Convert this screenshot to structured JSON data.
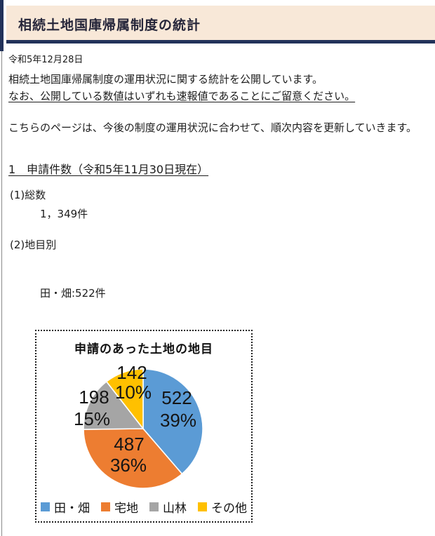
{
  "page": {
    "title": "相続土地国庫帰属制度の統計",
    "date": "令和5年12月28日",
    "intro_line1": "相続土地国庫帰属制度の運用状況に関する統計を公開しています。",
    "intro_line2_underlined": "なお、公開している数値はいずれも速報値であることにご留意ください。",
    "update_note": "こちらのページは、今後の制度の運用状況に合わせて、順次内容を更新していきます。",
    "section1_heading": "1　申請件数（令和5年11月30日現在）",
    "subsection1_label": "(1)総数",
    "subsection1_value": "1，349件",
    "subsection2_label": "(2)地目別",
    "subsection2_items": [
      "田・畑:522件",
      "宅地　:487件",
      "山林　:198件",
      "その他:142件"
    ]
  },
  "theme": {
    "header_bg": "#f8e8d8",
    "header_accent": "#22325a",
    "left_rule": "#8a8a8a"
  },
  "chart_data": {
    "type": "pie",
    "title": "申請のあった土地の地目",
    "categories": [
      "田・畑",
      "宅地",
      "山林",
      "その他"
    ],
    "values": [
      522,
      487,
      198,
      142
    ],
    "percent_labels": [
      "39%",
      "36%",
      "15%",
      "10%"
    ],
    "colors": [
      "#5B9BD5",
      "#ED7D31",
      "#A5A5A5",
      "#FFC000"
    ],
    "total": 1349,
    "start_angle_deg": 0,
    "direction": "clockwise",
    "legend_position": "bottom",
    "slice_border_color": "#ffffff"
  }
}
